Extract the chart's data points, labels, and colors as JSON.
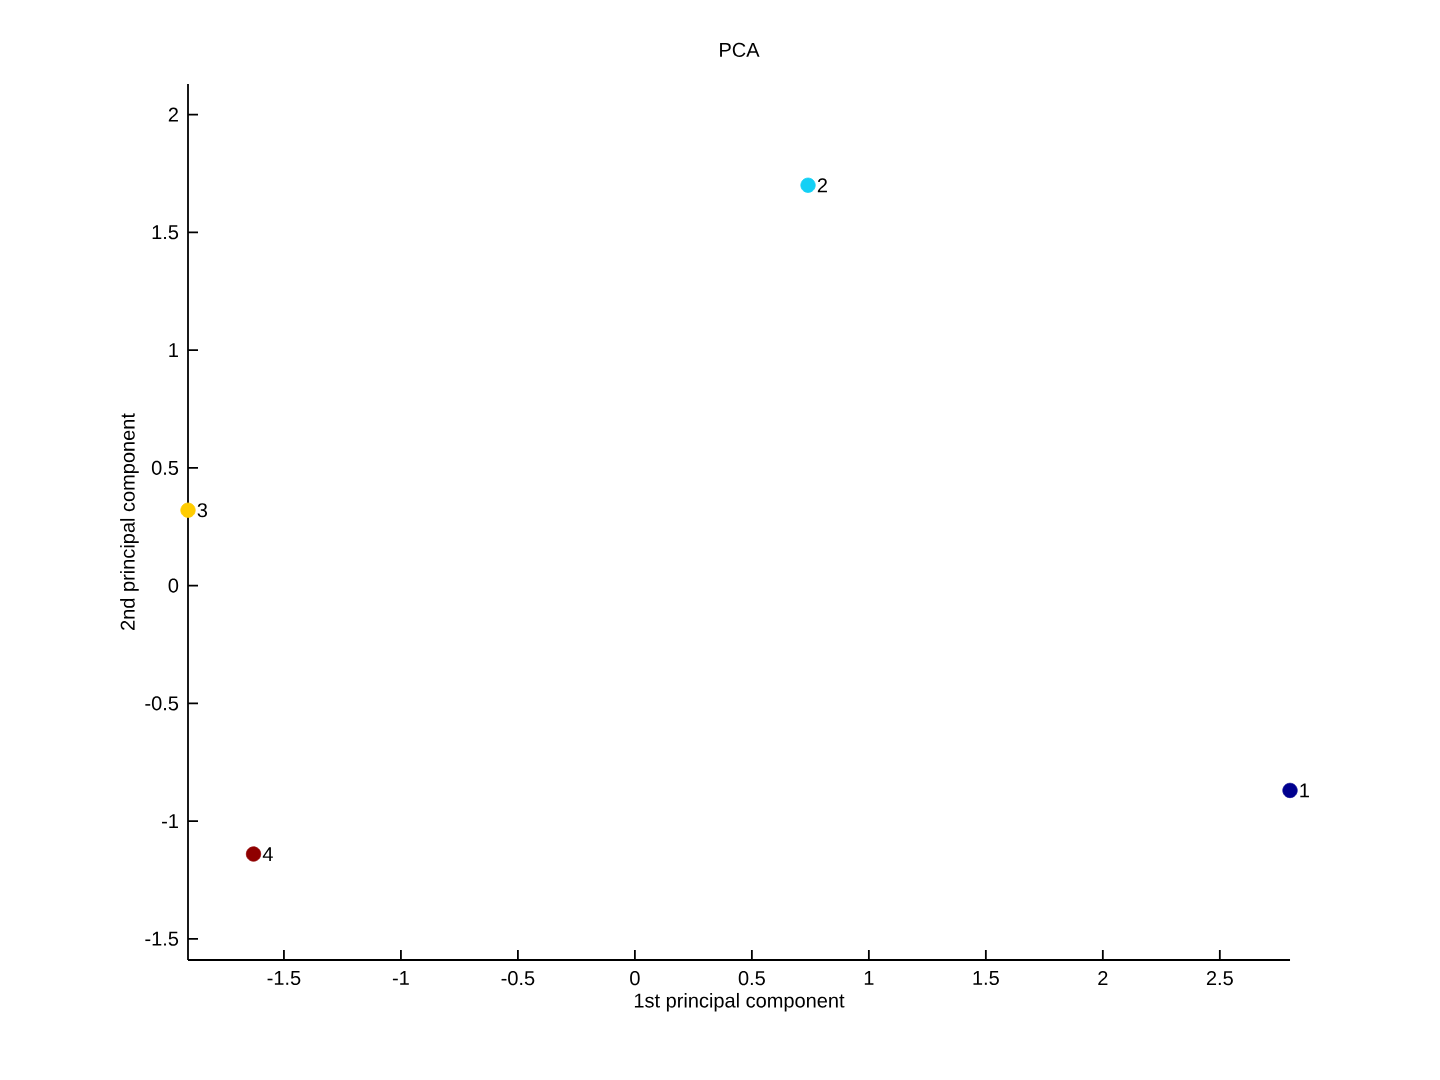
{
  "chart_data": {
    "type": "scatter",
    "title": "PCA",
    "xlabel": "1st principal component",
    "ylabel": "2nd principal component",
    "x": [
      2.8,
      0.74,
      -1.91,
      -1.63
    ],
    "values": [
      -0.87,
      1.7,
      0.32,
      -1.14
    ],
    "colors": [
      "#00008f",
      "#13d0f5",
      "#ffcc00",
      "#8f0000"
    ],
    "marker": "circle",
    "xlim": [
      -1.91,
      2.8
    ],
    "ylim": [
      -1.59,
      2.13
    ],
    "xticks": [
      -1.5,
      -1,
      -0.5,
      0,
      0.5,
      1,
      1.5,
      2,
      2.5
    ],
    "yticks": [
      -1.5,
      -1,
      -0.5,
      0,
      0.5,
      1,
      1.5,
      2
    ],
    "annotations": [
      {
        "text": "1",
        "x": 2.8,
        "y": -0.87
      },
      {
        "text": "2",
        "x": 0.74,
        "y": 1.7
      },
      {
        "text": "3",
        "x": -1.91,
        "y": 0.32
      },
      {
        "text": "4",
        "x": -1.63,
        "y": -1.14
      }
    ]
  }
}
